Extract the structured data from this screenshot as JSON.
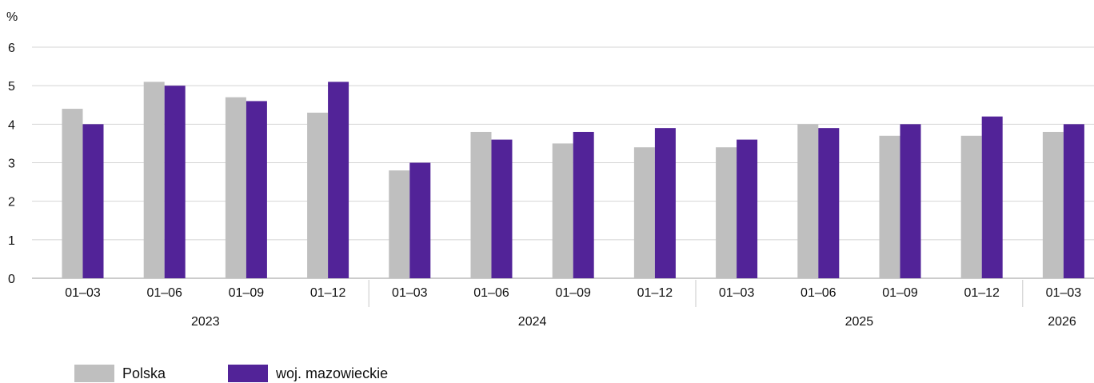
{
  "chart_data": {
    "type": "bar",
    "yunit": "%",
    "ylim": [
      0,
      6
    ],
    "yticks": [
      0,
      1,
      2,
      3,
      4,
      5,
      6
    ],
    "grid": true,
    "categories": [
      "01–03",
      "01–06",
      "01–09",
      "01–12",
      "01–03",
      "01–06",
      "01–09",
      "01–12",
      "01–03",
      "01–06",
      "01–09",
      "01–12",
      "01–03"
    ],
    "groups": [
      {
        "label": "2023",
        "count": 4
      },
      {
        "label": "2024",
        "count": 4
      },
      {
        "label": "2025",
        "count": 4
      },
      {
        "label": "2026",
        "count": 1
      }
    ],
    "series": [
      {
        "name": "Polska",
        "color": "#bfbfbf",
        "values": [
          4.4,
          5.1,
          4.7,
          4.3,
          2.8,
          3.8,
          3.5,
          3.4,
          3.4,
          4.0,
          3.7,
          3.7,
          3.8
        ]
      },
      {
        "name": "woj. mazowieckie",
        "color": "#522398",
        "values": [
          4.0,
          5.0,
          4.6,
          5.1,
          3.0,
          3.6,
          3.8,
          3.9,
          3.6,
          3.9,
          4.0,
          4.2,
          4.0
        ]
      }
    ],
    "legend_position": "bottom-left"
  }
}
